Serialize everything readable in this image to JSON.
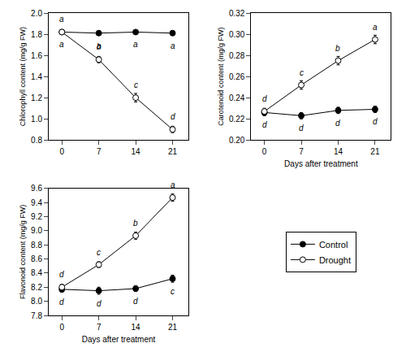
{
  "chart_data": [
    {
      "type": "line",
      "ylabel": "Chlorophyll content (mg/g FW)",
      "x": [
        0,
        7,
        14,
        21
      ],
      "xlim": [
        -2.5,
        24
      ],
      "xticks": [
        0,
        7,
        14,
        21
      ],
      "ylim": [
        0.8,
        2.0
      ],
      "yticks": [
        0.8,
        {
          "value": 1.0,
          "label": "1.0"
        },
        1.2,
        1.4,
        1.6,
        1.8,
        {
          "value": 2.0,
          "label": "2.0"
        }
      ],
      "grid": false,
      "legend": "lower right",
      "series": [
        {
          "name": "Control",
          "color": "black",
          "marker": "filled",
          "values": [
            1.82,
            1.81,
            1.82,
            1.81
          ],
          "errors": [
            0.02,
            0.02,
            0.02,
            0.02
          ],
          "letters": [
            "a",
            "a",
            "a",
            "a"
          ]
        },
        {
          "name": "Drought",
          "color": "black",
          "marker": "open",
          "values": [
            1.82,
            1.56,
            1.2,
            0.9
          ],
          "errors": [
            0.02,
            0.03,
            0.04,
            0.03
          ],
          "letters": [
            "a",
            "b",
            "c",
            "d"
          ]
        }
      ]
    },
    {
      "type": "line",
      "xlabel": "Days after treatment",
      "ylabel": "Carotenoid content (mg/g FW)",
      "x": [
        0,
        7,
        14,
        21
      ],
      "xlim": [
        -2.5,
        24
      ],
      "xticks": [
        0,
        7,
        14,
        21
      ],
      "ylim": [
        0.2,
        0.32
      ],
      "yticks": [
        {
          "value": 0.2,
          "label": "0.20"
        },
        0.22,
        0.24,
        0.26,
        0.28,
        {
          "value": 0.3,
          "label": "0.30"
        },
        0.32
      ],
      "grid": false,
      "series": [
        {
          "name": "Control",
          "color": "black",
          "marker": "filled",
          "values": [
            0.226,
            0.223,
            0.228,
            0.229
          ],
          "errors": [
            0.003,
            0.003,
            0.003,
            0.003
          ],
          "letters": [
            "d",
            "d",
            "d",
            "d"
          ]
        },
        {
          "name": "Drought",
          "color": "black",
          "marker": "open",
          "values": [
            0.227,
            0.252,
            0.275,
            0.295
          ],
          "errors": [
            0.003,
            0.004,
            0.004,
            0.004
          ],
          "letters": [
            "d",
            "c",
            "b",
            "a"
          ]
        }
      ]
    },
    {
      "type": "line",
      "xlabel": "Days after treatment",
      "ylabel": "Flavonoid content (mg/g FW)",
      "x": [
        0,
        7,
        14,
        21
      ],
      "xlim": [
        -2.5,
        24
      ],
      "xticks": [
        0,
        7,
        14,
        21
      ],
      "ylim": [
        7.8,
        9.6
      ],
      "yticks": [
        7.8,
        {
          "value": 8.0,
          "label": "8.0"
        },
        8.2,
        8.4,
        8.6,
        8.8,
        {
          "value": 9.0,
          "label": "9.0"
        },
        9.2,
        9.4,
        9.6
      ],
      "grid": false,
      "series": [
        {
          "name": "Control",
          "color": "black",
          "marker": "filled",
          "values": [
            8.17,
            8.15,
            8.18,
            8.32
          ],
          "errors": [
            0.04,
            0.05,
            0.04,
            0.05
          ],
          "letters": [
            "d",
            "d",
            "d",
            "c"
          ]
        },
        {
          "name": "Drought",
          "color": "black",
          "marker": "open",
          "values": [
            8.2,
            8.52,
            8.93,
            9.47
          ],
          "errors": [
            0.04,
            0.04,
            0.05,
            0.05
          ],
          "letters": [
            "d",
            "c",
            "b",
            "a"
          ]
        }
      ]
    }
  ]
}
